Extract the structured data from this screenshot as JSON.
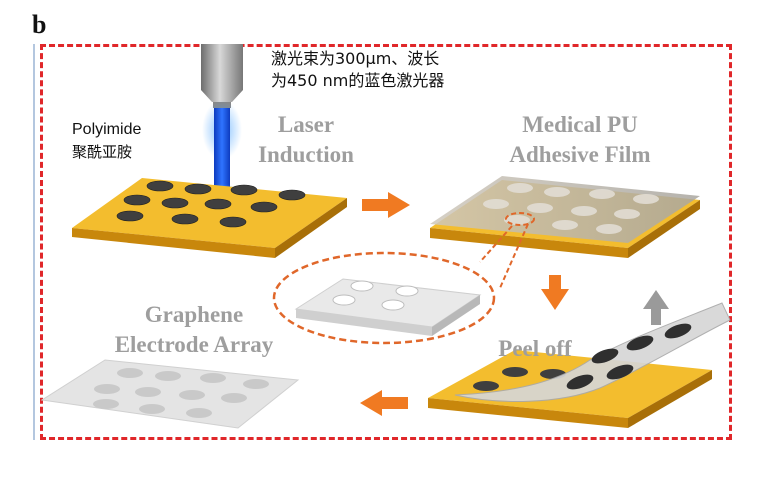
{
  "panel_label": "b",
  "annotation_laser": "激光束为300μm、波长\n为450 nm的蓝色激光器",
  "label_polyimide_en": "Polyimide",
  "label_polyimide_cn": "聚酰亚胺",
  "step_laser_induction": "Laser\nInduction",
  "step_medical_pu": "Medical PU\nAdhesive Film",
  "step_peel_off": "Peel off",
  "step_graphene": "Graphene\nElectrode Array",
  "colors": {
    "frame": "#e0272a",
    "arrow": "#f07a22",
    "polyimide": "#f2b823",
    "laser_beam": "#1f57e8",
    "dot": "#444444"
  }
}
